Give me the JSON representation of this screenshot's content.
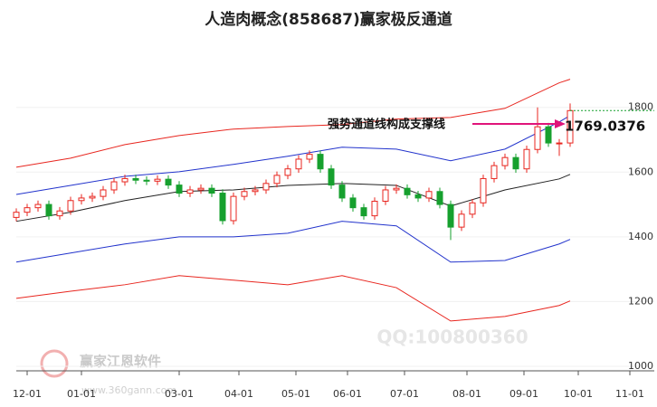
{
  "chart_data": {
    "type": "candlestick",
    "title": "人造肉概念(858687)赢家极反通道",
    "annotation": "强势通道线构成支撑线",
    "annotation_value": "1769.0376",
    "watermarks": [
      "QQ:100800360",
      "赢家江恩软件",
      "www.360gann.com"
    ],
    "xlim": [
      0,
      235
    ],
    "ylim": [
      986,
      2020
    ],
    "yticks": [
      1000,
      1200,
      1400,
      1600,
      1800
    ],
    "xticks": [
      {
        "value": 4,
        "label": "12-01"
      },
      {
        "value": 24,
        "label": "01-01"
      },
      {
        "value": 60,
        "label": "03-01"
      },
      {
        "value": 82,
        "label": "04-01"
      },
      {
        "value": 103,
        "label": "05-01"
      },
      {
        "value": 122,
        "label": "06-01"
      },
      {
        "value": 143,
        "label": "07-01"
      },
      {
        "value": 166,
        "label": "08-01"
      },
      {
        "value": 187,
        "label": "09-01"
      },
      {
        "value": 207,
        "label": "10-01"
      },
      {
        "value": 226,
        "label": "11-01"
      }
    ],
    "up_color": "#e8261f",
    "down_color": "#16a02e",
    "candles": {
      "x": [
        0,
        4,
        8,
        12,
        16,
        20,
        24,
        28,
        32,
        36,
        40,
        44,
        48,
        52,
        56,
        60,
        64,
        68,
        72,
        76,
        80,
        84,
        88,
        92,
        96,
        100,
        104,
        108,
        112,
        116,
        120,
        124,
        128,
        132,
        136,
        140,
        144,
        148,
        152,
        156,
        160,
        164,
        168,
        172,
        176,
        180,
        184,
        188,
        192,
        196,
        200,
        204
      ],
      "open": [
        1460,
        1476,
        1490,
        1500,
        1465,
        1480,
        1512,
        1520,
        1525,
        1545,
        1570,
        1580,
        1575,
        1572,
        1578,
        1560,
        1535,
        1545,
        1550,
        1535,
        1450,
        1525,
        1540,
        1545,
        1565,
        1590,
        1610,
        1640,
        1655,
        1610,
        1560,
        1520,
        1490,
        1465,
        1510,
        1545,
        1550,
        1530,
        1520,
        1540,
        1500,
        1430,
        1470,
        1505,
        1580,
        1620,
        1645,
        1610,
        1670,
        1740,
        1690,
        1690
      ],
      "high": [
        1488,
        1502,
        1512,
        1512,
        1492,
        1524,
        1532,
        1537,
        1557,
        1582,
        1592,
        1592,
        1587,
        1590,
        1590,
        1572,
        1557,
        1562,
        1562,
        1547,
        1537,
        1552,
        1557,
        1577,
        1602,
        1622,
        1652,
        1667,
        1667,
        1622,
        1572,
        1532,
        1502,
        1522,
        1557,
        1562,
        1562,
        1542,
        1552,
        1552,
        1512,
        1482,
        1517,
        1592,
        1632,
        1657,
        1657,
        1682,
        1800,
        1752,
        1702,
        1812
      ],
      "low": [
        1448,
        1464,
        1478,
        1453,
        1453,
        1468,
        1500,
        1508,
        1513,
        1533,
        1558,
        1563,
        1560,
        1560,
        1548,
        1523,
        1523,
        1533,
        1523,
        1438,
        1438,
        1513,
        1528,
        1533,
        1553,
        1578,
        1598,
        1628,
        1598,
        1548,
        1508,
        1478,
        1453,
        1453,
        1498,
        1533,
        1518,
        1508,
        1508,
        1488,
        1390,
        1418,
        1458,
        1493,
        1568,
        1608,
        1598,
        1598,
        1658,
        1678,
        1650,
        1678
      ],
      "close": [
        1476,
        1490,
        1500,
        1465,
        1480,
        1512,
        1520,
        1525,
        1545,
        1570,
        1580,
        1575,
        1572,
        1578,
        1560,
        1535,
        1545,
        1550,
        1535,
        1450,
        1525,
        1540,
        1545,
        1565,
        1590,
        1610,
        1640,
        1655,
        1610,
        1560,
        1520,
        1490,
        1465,
        1510,
        1545,
        1550,
        1530,
        1520,
        1540,
        1500,
        1430,
        1470,
        1505,
        1580,
        1620,
        1645,
        1610,
        1670,
        1740,
        1690,
        1690,
        1790
      ]
    },
    "channel_x": [
      0,
      20,
      40,
      60,
      80,
      100,
      120,
      140,
      160,
      180,
      200,
      204
    ],
    "series": [
      {
        "color": "#e8261f",
        "values": [
          1615,
          1643,
          1685,
          1713,
          1733,
          1741,
          1747,
          1764,
          1769,
          1797,
          1876,
          1887
        ]
      },
      {
        "color": "#2233cc",
        "values": [
          1531,
          1559,
          1587,
          1601,
          1624,
          1649,
          1677,
          1671,
          1635,
          1671,
          1755,
          1775
        ]
      },
      {
        "color": "#222222",
        "values": [
          1448,
          1476,
          1512,
          1540,
          1545,
          1559,
          1565,
          1559,
          1495,
          1545,
          1579,
          1593
        ]
      },
      {
        "color": "#2233cc",
        "values": [
          1322,
          1350,
          1378,
          1400,
          1400,
          1411,
          1448,
          1434,
          1322,
          1327,
          1378,
          1392
        ]
      },
      {
        "color": "#e8261f",
        "values": [
          1210,
          1232,
          1252,
          1280,
          1266,
          1252,
          1280,
          1243,
          1140,
          1154,
          1188,
          1202
        ]
      }
    ]
  }
}
